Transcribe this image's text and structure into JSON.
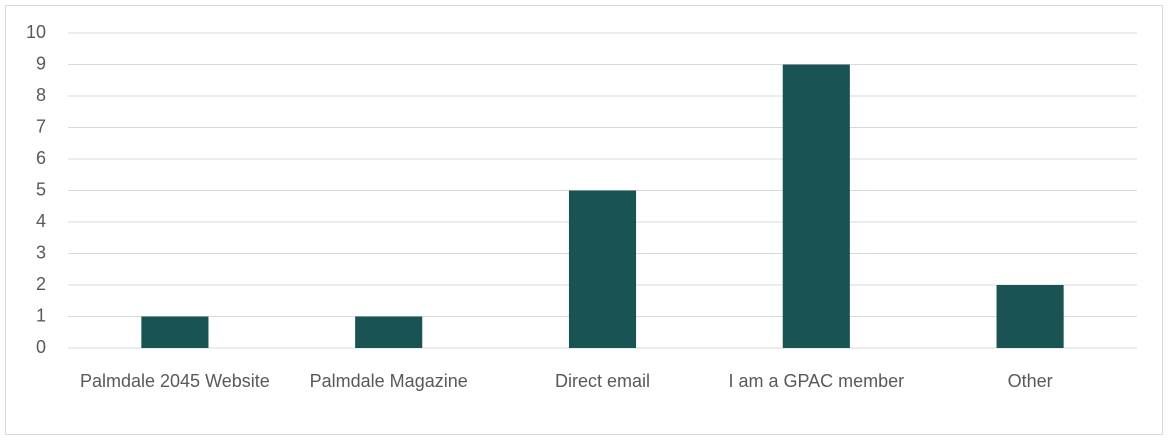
{
  "chart_data": {
    "type": "bar",
    "categories": [
      "Palmdale 2045 Website",
      "Palmdale Magazine",
      "Direct email",
      "I am a GPAC member",
      "Other"
    ],
    "values": [
      1,
      1,
      5,
      9,
      2
    ],
    "color": "#1a5353",
    "ylim": [
      0,
      10
    ],
    "yticks": [
      0,
      1,
      2,
      3,
      4,
      5,
      6,
      7,
      8,
      9,
      10
    ],
    "grid": true
  }
}
